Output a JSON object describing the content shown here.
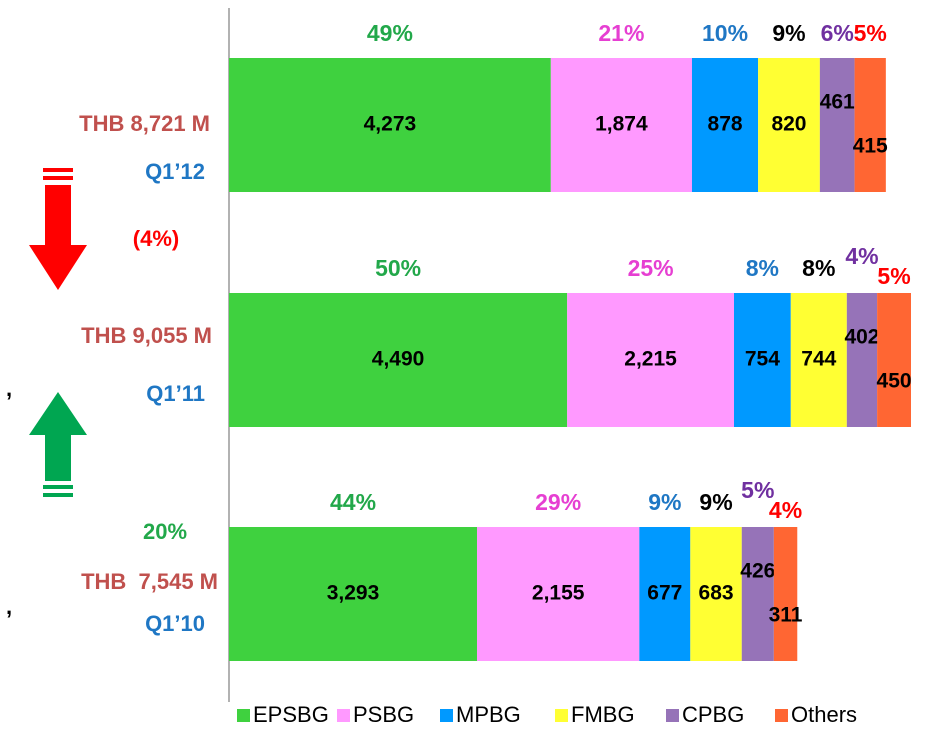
{
  "chart_data": {
    "type": "stacked-bar-horizontal",
    "categories": [
      "Q1’12",
      "Q1’11",
      "Q1’10"
    ],
    "series": [
      {
        "name": "EPSBG",
        "color": "#3fd13f",
        "label_color": "#22a84a",
        "values": [
          4273,
          4490,
          3293
        ],
        "value_labels": [
          "4,273",
          "4,490",
          "3,293"
        ],
        "percents": [
          49,
          50,
          44
        ],
        "percent_labels": [
          "49%",
          "50%",
          "44%"
        ]
      },
      {
        "name": "PSBG",
        "color": "#ff99ff",
        "label_color": "#e63fd2",
        "values": [
          1874,
          2215,
          2155
        ],
        "value_labels": [
          "1,874",
          "2,215",
          "2,155"
        ],
        "percents": [
          21,
          25,
          29
        ],
        "percent_labels": [
          "21%",
          "25%",
          "29%"
        ]
      },
      {
        "name": "MPBG",
        "color": "#0099ff",
        "label_color": "#1f77c4",
        "values": [
          878,
          754,
          677
        ],
        "percents": [
          10,
          8,
          9
        ],
        "percent_labels": [
          "10%",
          "8%",
          "9%"
        ]
      },
      {
        "name": "FMBG",
        "color": "#ffff33",
        "label_color": "#000000",
        "values": [
          820,
          744,
          683
        ],
        "percents": [
          9,
          8,
          9
        ],
        "percent_labels": [
          "9%",
          "8%",
          "9%"
        ]
      },
      {
        "name": "CPBG",
        "color": "#9673b8",
        "label_color": "#7030a0",
        "values": [
          461,
          402,
          426
        ],
        "percents": [
          6,
          4,
          5
        ],
        "percent_labels": [
          "6%",
          "4%",
          "5%"
        ]
      },
      {
        "name": "Others",
        "color": "#ff6633",
        "label_color": "#ff0000",
        "values": [
          415,
          450,
          311
        ],
        "percents": [
          5,
          5,
          4
        ],
        "percent_labels": [
          "5%",
          "5%",
          "4%"
        ]
      }
    ],
    "annotations": [
      "THB 8,721 M",
      "(4%)",
      "THB 9,055 M",
      "20%",
      "THB  7,545 M",
      ",",
      ","
    ]
  }
}
